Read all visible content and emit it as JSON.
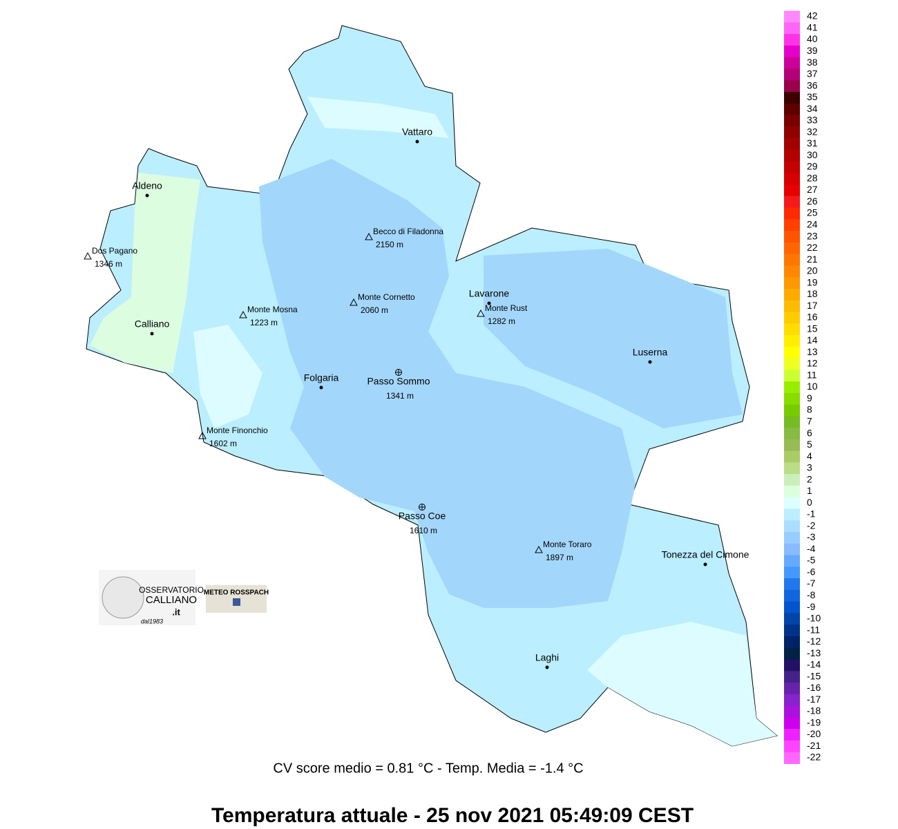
{
  "towns": [
    "Vattaro",
    "Aldeno",
    "Calliano",
    "Folgaria",
    "Lavarone",
    "Luserna",
    "Tonezza del Cimone",
    "Laghi"
  ],
  "peaks": [
    {
      "name": "Becco di Filadonna",
      "elevation": "2150 m"
    },
    {
      "name": "Dos Pagano",
      "elevation": "1346 m"
    },
    {
      "name": "Monte Mosna",
      "elevation": "1223 m"
    },
    {
      "name": "Monte Cornetto",
      "elevation": "2060 m"
    },
    {
      "name": "Monte Rust",
      "elevation": "1282 m"
    },
    {
      "name": "Monte Finonchio",
      "elevation": "1602 m"
    },
    {
      "name": "Monte Toraro",
      "elevation": "1897 m"
    }
  ],
  "passes": [
    {
      "name": "Passo Sommo",
      "elevation": "1341 m"
    },
    {
      "name": "Passo Coe",
      "elevation": "1610 m"
    }
  ],
  "legend": {
    "values": [
      42,
      41,
      40,
      39,
      38,
      37,
      36,
      35,
      34,
      33,
      32,
      31,
      30,
      29,
      28,
      27,
      26,
      25,
      24,
      23,
      22,
      21,
      20,
      19,
      18,
      17,
      16,
      15,
      14,
      13,
      12,
      11,
      10,
      9,
      8,
      7,
      6,
      5,
      4,
      3,
      2,
      1,
      0,
      -1,
      -2,
      -3,
      -4,
      -5,
      -6,
      -7,
      -8,
      -9,
      -10,
      -11,
      -12,
      -13,
      -14,
      -15,
      -16,
      -17,
      -18,
      -19,
      -20,
      -21,
      -22
    ],
    "colors": [
      "#ff88ff",
      "#ff66f5",
      "#ff33e6",
      "#e600cc",
      "#cc0099",
      "#b30077",
      "#99004d",
      "#3d0000",
      "#5c0000",
      "#7a0000",
      "#900000",
      "#a30000",
      "#b30000",
      "#c40000",
      "#d60000",
      "#e60000",
      "#f51a1a",
      "#ff2a00",
      "#ff4000",
      "#ff5500",
      "#ff6600",
      "#ff7700",
      "#ff8800",
      "#ff9900",
      "#ffaa00",
      "#ffbb00",
      "#ffcc00",
      "#ffdd00",
      "#ffee00",
      "#ffff00",
      "#eeff22",
      "#ccff33",
      "#99ee00",
      "#88dd00",
      "#77cc00",
      "#77bb22",
      "#88bb44",
      "#99bb55",
      "#aacc66",
      "#bbdd88",
      "#cceebb",
      "#ddffdd",
      "#ddffff",
      "#bbeeff",
      "#aaddff",
      "#99ccff",
      "#88bbff",
      "#66aaff",
      "#4499ff",
      "#2277ee",
      "#1166dd",
      "#0055cc",
      "#0044aa",
      "#003388",
      "#002266",
      "#002244",
      "#221166",
      "#442288",
      "#6622aa",
      "#8822cc",
      "#aa11dd",
      "#cc00ee",
      "#ee22ff",
      "#ff44ff",
      "#ff66ff"
    ]
  },
  "stats": "CV score medio = 0.81 °C  -  Temp. Media = -1.4 °C",
  "title": "Temperatura attuale  -  25 nov 2021 05:49:09  CEST",
  "logos": {
    "observatory": [
      "OSSERVATORIO",
      "CALLIANO",
      ".it",
      "dal1983"
    ],
    "meteo": "METEO ROSSPACH"
  }
}
